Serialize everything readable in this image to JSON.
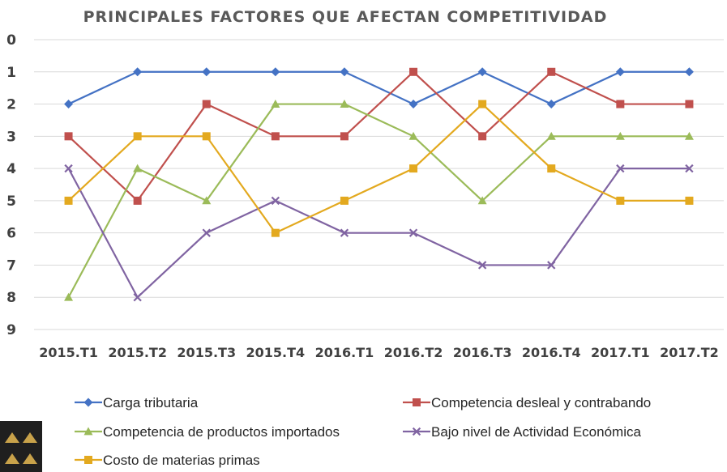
{
  "chart_data": {
    "type": "line",
    "title": "PRINCIPALES FACTORES QUE AFECTAN COMPETITIVIDAD",
    "xlabel": "",
    "ylabel": "",
    "y_reversed": true,
    "ylim": [
      0,
      9
    ],
    "yticks": [
      "0",
      "1",
      "2",
      "3",
      "4",
      "5",
      "6",
      "7",
      "8",
      "9"
    ],
    "grid": true,
    "legend_position": "bottom",
    "categories": [
      "2015.T1",
      "2015.T2",
      "2015.T3",
      "2015.T4",
      "2016.T1",
      "2016.T2",
      "2016.T3",
      "2016.T4",
      "2017.T1",
      "2017.T2"
    ],
    "series": [
      {
        "name": "Carga tributaria",
        "color": "#4472c4",
        "marker": "diamond",
        "values": [
          2,
          1,
          1,
          1,
          1,
          2,
          1,
          2,
          1,
          1
        ]
      },
      {
        "name": "Competencia desleal y contrabando",
        "color": "#c0504d",
        "marker": "square",
        "values": [
          3,
          5,
          2,
          3,
          3,
          1,
          3,
          1,
          2,
          2
        ]
      },
      {
        "name": "Competencia de productos importados",
        "color": "#9bbb59",
        "marker": "triangle",
        "values": [
          8,
          4,
          5,
          2,
          2,
          3,
          5,
          3,
          3,
          3
        ]
      },
      {
        "name": "Bajo nivel de Actividad Económica",
        "color": "#8064a2",
        "marker": "x",
        "values": [
          4,
          8,
          6,
          5,
          6,
          6,
          7,
          7,
          4,
          4
        ]
      },
      {
        "name": "Costo de materias primas",
        "color": "#e3a91f",
        "marker": "square",
        "values": [
          5,
          3,
          3,
          6,
          5,
          4,
          2,
          4,
          5,
          5
        ]
      }
    ]
  },
  "logo": {
    "icon": "logo-icon",
    "color": "#c8a24a"
  }
}
